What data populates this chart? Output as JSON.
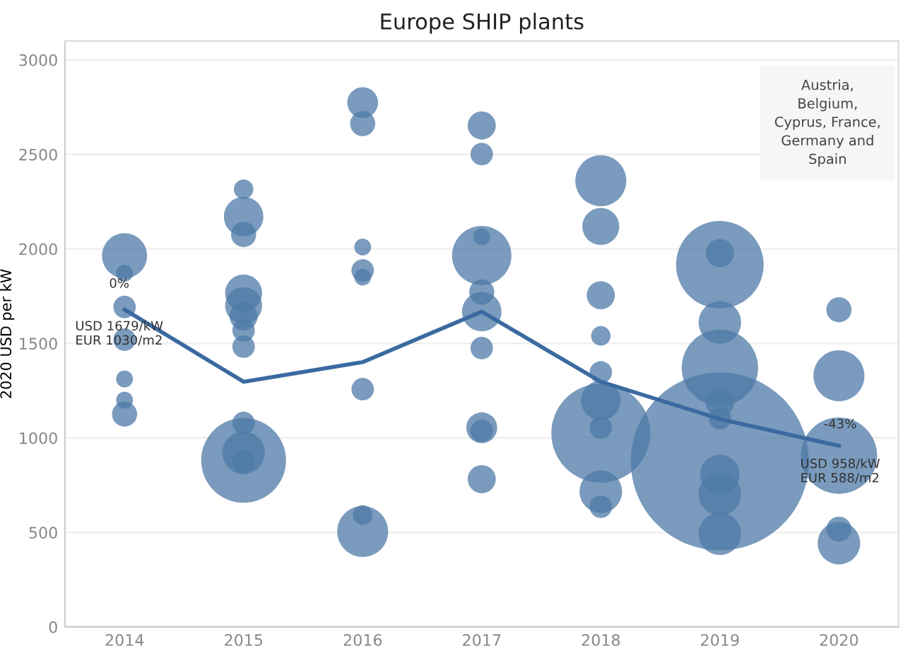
{
  "chart_data": {
    "type": "bubble",
    "title": "Europe SHIP plants",
    "ylabel": "2020 USD per kW",
    "xlim": [
      2013.5,
      2020.5
    ],
    "xticks": [
      2014,
      2015,
      2016,
      2017,
      2018,
      2019,
      2020
    ],
    "ylim": [
      0,
      3100
    ],
    "yticks": [
      0,
      500,
      1000,
      1500,
      2000,
      2500,
      3000
    ],
    "grid": "y",
    "series": [
      {
        "color": "#4e79a7",
        "x": [
          2014,
          2014,
          2014,
          2014,
          2014,
          2014,
          2014,
          2015,
          2015,
          2015,
          2015,
          2015,
          2015,
          2015,
          2015,
          2015,
          2015,
          2015,
          2015,
          2016,
          2016,
          2016,
          2016,
          2016,
          2016,
          2016,
          2016,
          2017,
          2017,
          2017,
          2017,
          2017,
          2017,
          2017,
          2017,
          2017,
          2017,
          2018,
          2018,
          2018,
          2018,
          2018,
          2018,
          2018,
          2018,
          2018,
          2018,
          2019,
          2019,
          2019,
          2019,
          2019,
          2019,
          2019,
          2019,
          2019,
          2019,
          2020,
          2020,
          2020,
          2020,
          2020
        ],
        "values": [
          1964,
          1871,
          1693,
          1520,
          1312,
          1200,
          1126,
          2316,
          2171,
          2076,
          1767,
          1700,
          1643,
          1569,
          1483,
          1079,
          921,
          881,
          875,
          2774,
          2663,
          2010,
          1886,
          1851,
          1258,
          592,
          505,
          2653,
          2502,
          2064,
          1965,
          1772,
          1668,
          1475,
          1054,
          1037,
          782,
          2361,
          2119,
          1755,
          1540,
          1347,
          1198,
          1054,
          1025,
          716,
          636,
          1978,
          1916,
          1611,
          1371,
          1186,
          1104,
          876,
          807,
          703,
          493,
          1678,
          1329,
          906,
          517,
          443
        ],
        "sizes": [
          0.064,
          0.009,
          0.016,
          0.016,
          0.009,
          0.009,
          0.02,
          0.012,
          0.049,
          0.02,
          0.043,
          0.043,
          0.025,
          0.016,
          0.016,
          0.016,
          0.057,
          0.227,
          0.016,
          0.03,
          0.02,
          0.009,
          0.016,
          0.009,
          0.016,
          0.012,
          0.082,
          0.025,
          0.016,
          0.009,
          0.111,
          0.02,
          0.049,
          0.016,
          0.03,
          0.016,
          0.025,
          0.082,
          0.043,
          0.025,
          0.012,
          0.016,
          0.049,
          0.016,
          0.309,
          0.057,
          0.016,
          0.025,
          0.242,
          0.057,
          0.184,
          0.025,
          0.016,
          1,
          0.049,
          0.057,
          0.057,
          0.02,
          0.082,
          0.184,
          0.02,
          0.057
        ]
      },
      {
        "type": "line",
        "color": "#3a6aa0",
        "x": [
          2014,
          2015,
          2016,
          2017,
          2018,
          2019,
          2020
        ],
        "values": [
          1679,
          1297,
          1401,
          1668,
          1297,
          1100,
          958
        ]
      }
    ],
    "annotations": [
      "0%",
      "USD 1679/kW\nEUR 1030/m2",
      "-43%",
      "USD 958/kW\nEUR 588/m2",
      "Austria,\nBelgium,\nCyprus, France,\nGermany and\nSpain"
    ]
  }
}
